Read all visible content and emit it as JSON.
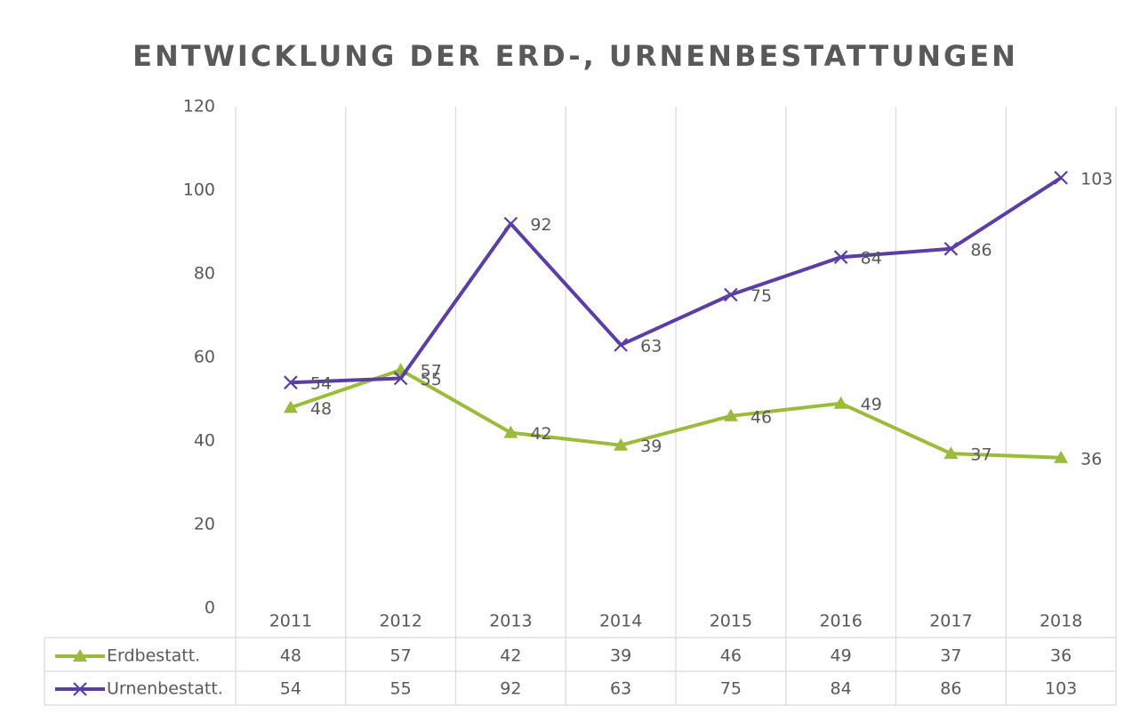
{
  "chart_data": {
    "type": "line",
    "title": "ENTWICKLUNG DER ERD-, URNENBESTATTUNGEN",
    "categories": [
      "2011",
      "2012",
      "2013",
      "2014",
      "2015",
      "2016",
      "2017",
      "2018"
    ],
    "series": [
      {
        "name": "Erdbestatt.",
        "color": "#9bbb3b",
        "marker": "triangle",
        "values": [
          48,
          57,
          42,
          39,
          46,
          49,
          37,
          36
        ]
      },
      {
        "name": "Urnenbestatt.",
        "color": "#5a3ea6",
        "marker": "x",
        "values": [
          54,
          55,
          92,
          63,
          75,
          84,
          86,
          103
        ]
      }
    ],
    "ylim": [
      0,
      120
    ],
    "yticks": [
      0,
      20,
      40,
      60,
      80,
      100,
      120
    ],
    "grid": false,
    "data_table": true
  }
}
